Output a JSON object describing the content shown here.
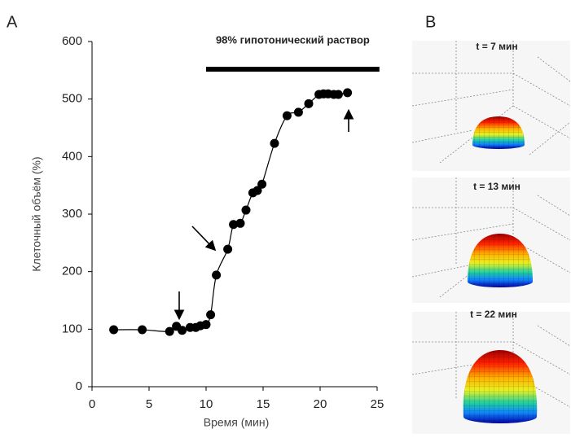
{
  "panels": {
    "a": "A",
    "b": "B"
  },
  "chart_data": {
    "type": "scatter",
    "x_label": "Время (мин)",
    "y_label": "Клеточный объём (%)",
    "x": [
      1.9,
      4.4,
      6.8,
      7.4,
      7.9,
      8.6,
      9.1,
      9.5,
      10.0,
      10.4,
      10.9,
      11.9,
      12.4,
      13.0,
      13.5,
      14.1,
      14.5,
      14.9,
      16.0,
      17.1,
      18.1,
      19.0,
      19.9,
      20.3,
      20.7,
      21.2,
      21.6,
      22.4
    ],
    "series": [
      {
        "color": "#000000",
        "values": [
          99,
          99,
          96,
          105,
          98,
          103,
          103,
          106,
          108,
          125,
          194,
          239,
          282,
          284,
          307,
          337,
          341,
          352,
          423,
          471,
          477,
          492,
          508,
          509,
          509,
          508,
          508,
          511
        ]
      }
    ],
    "xlim": [
      0,
      25
    ],
    "ylim": [
      0,
      600
    ],
    "xticks": [
      0,
      5,
      10,
      15,
      20,
      25
    ],
    "yticks": [
      0,
      100,
      200,
      300,
      400,
      500,
      600
    ],
    "annotation": {
      "label": "98% гипотонический раствор",
      "start": 10,
      "end": 25.2
    }
  },
  "snapshots": [
    {
      "label": "t = 7 мин"
    },
    {
      "label": "t = 13 мин"
    },
    {
      "label": "t = 22 мин"
    }
  ]
}
